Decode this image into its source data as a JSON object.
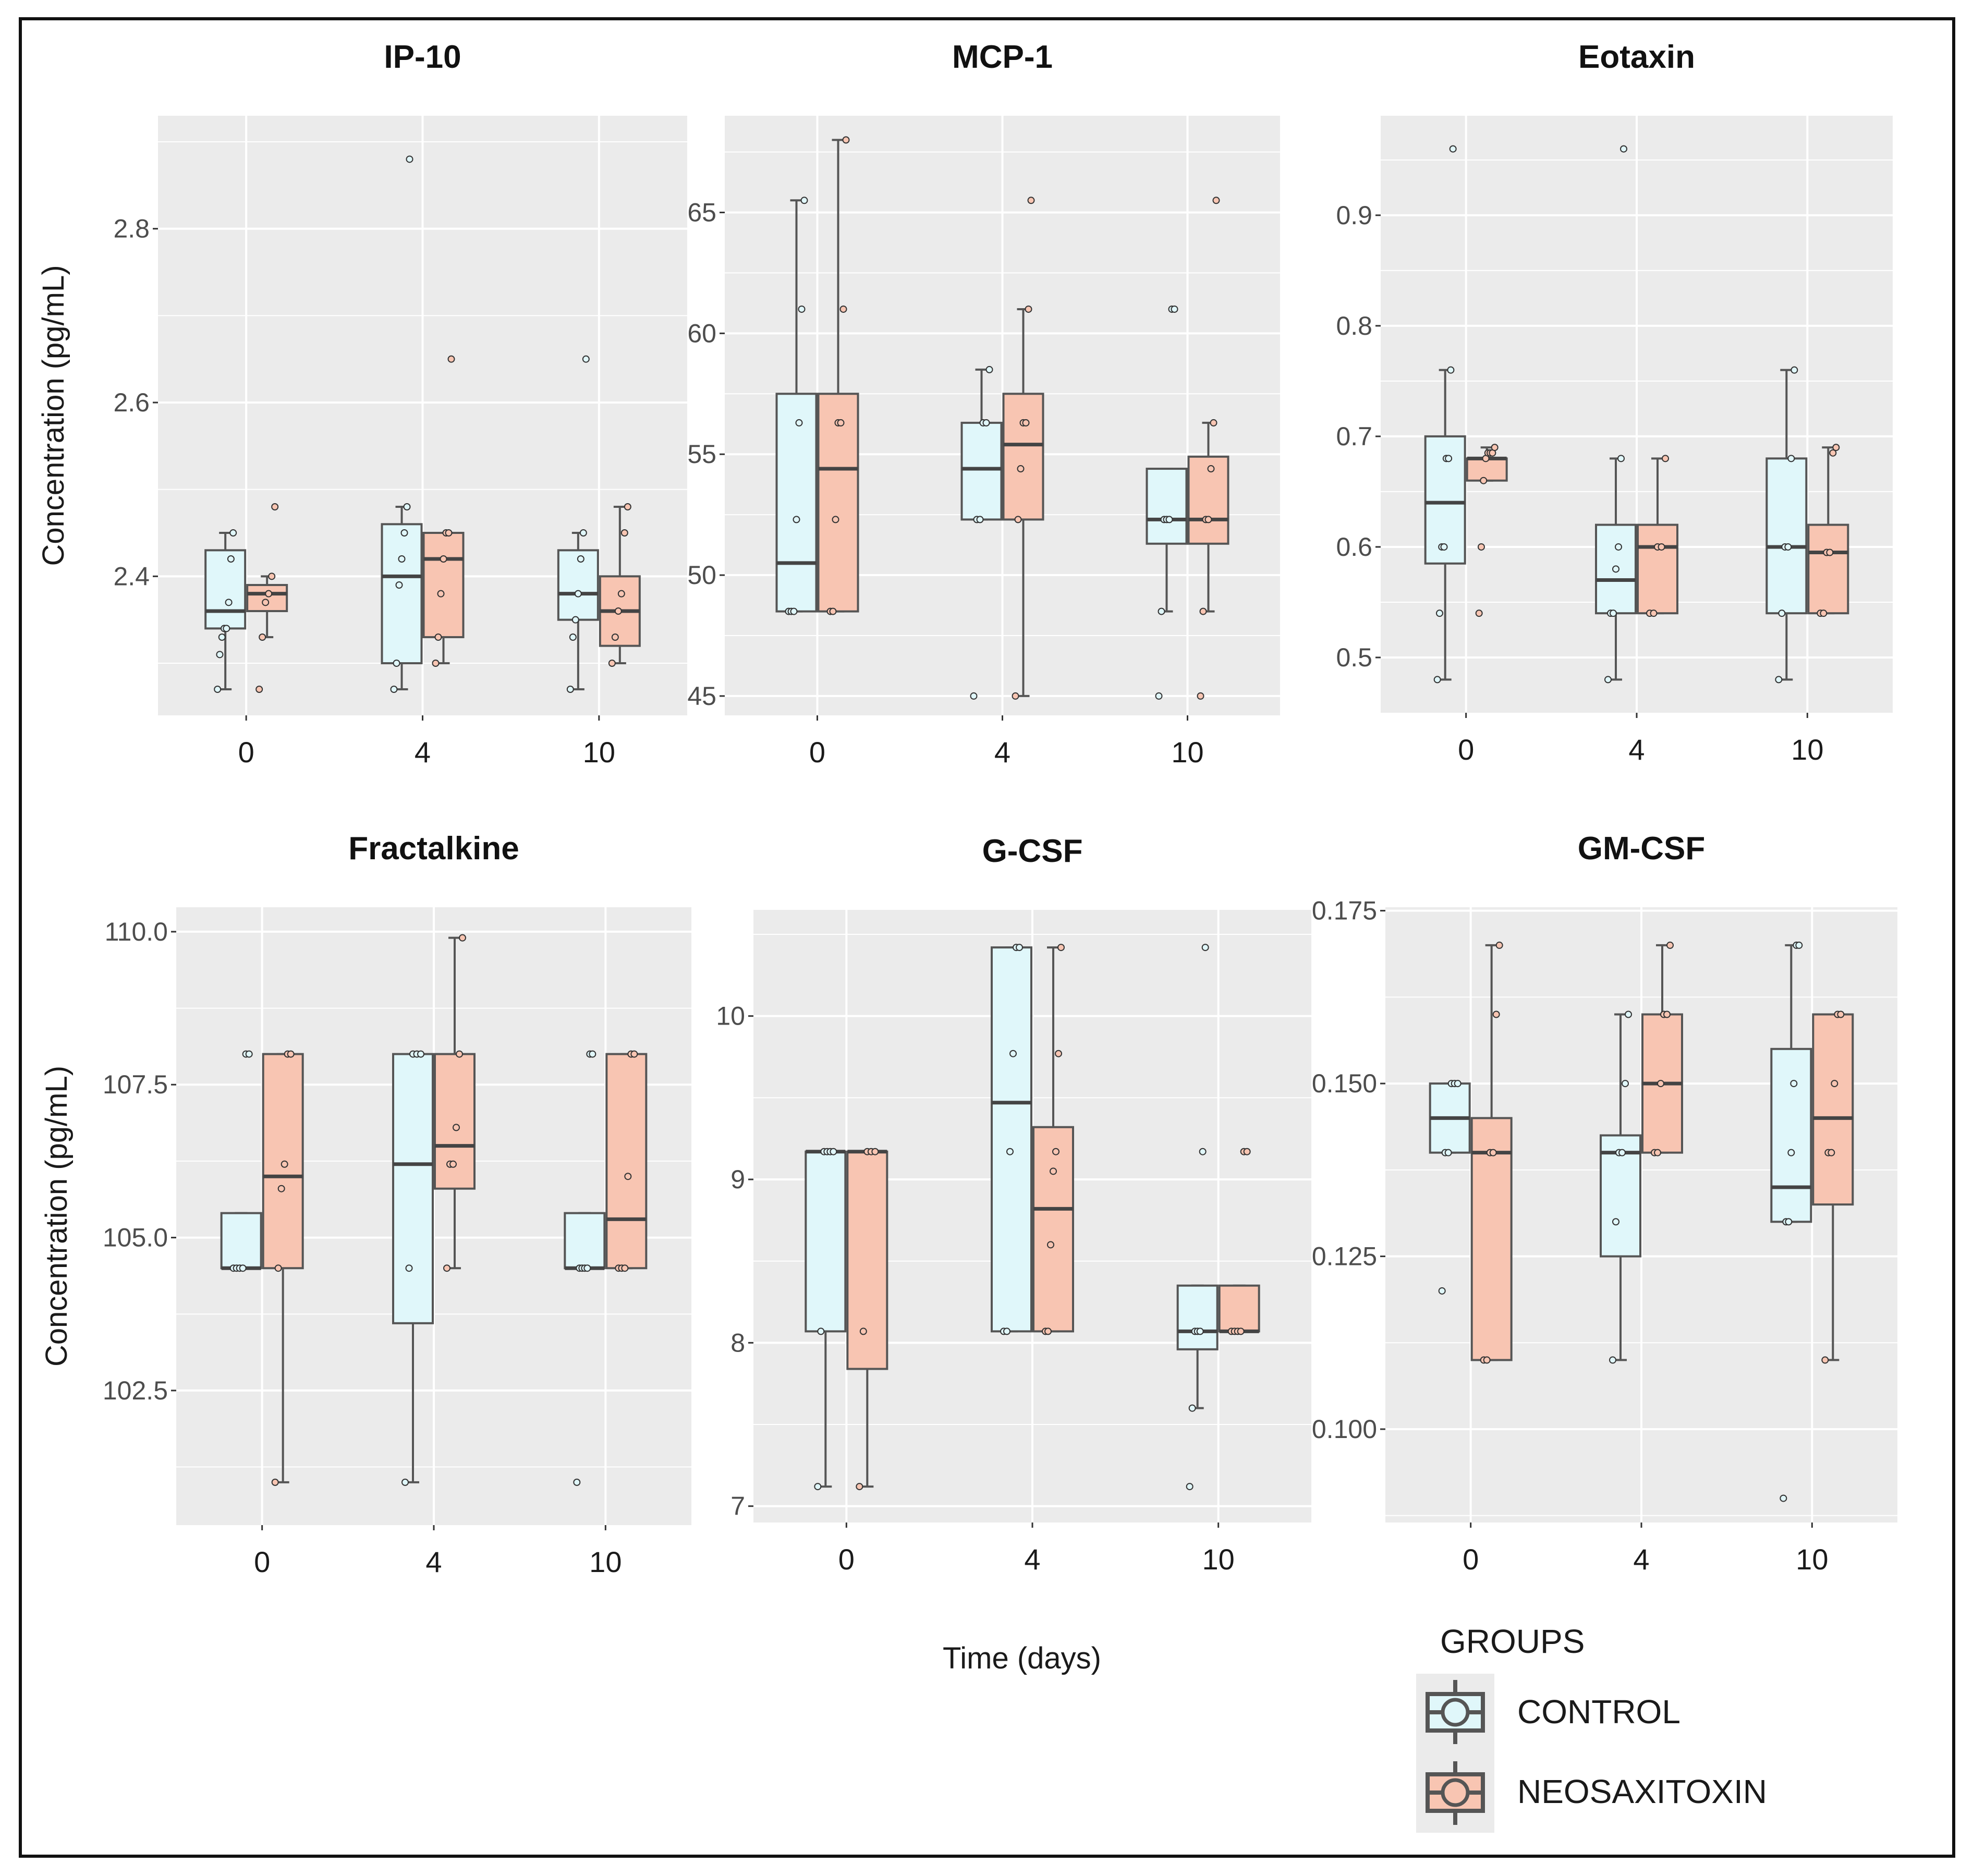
{
  "chart_data": [
    {
      "type": "box",
      "title": "IP-10",
      "ylabel": "Concentration (pg/mL)",
      "ylim": [
        2.24,
        2.93
      ],
      "yticks": [
        "2.4",
        "2.6",
        "2.8"
      ],
      "categories": [
        "0",
        "4",
        "10"
      ],
      "series": [
        {
          "name": "CONTROL",
          "boxes": [
            {
              "min": 2.27,
              "q1": 2.34,
              "median": 2.36,
              "q3": 2.43,
              "max": 2.45,
              "points": [
                2.27,
                2.31,
                2.33,
                2.34,
                2.34,
                2.37,
                2.42,
                2.45
              ]
            },
            {
              "min": 2.27,
              "q1": 2.3,
              "median": 2.4,
              "q3": 2.46,
              "max": 2.48,
              "points": [
                2.27,
                2.3,
                2.39,
                2.42,
                2.45,
                2.48,
                2.88
              ],
              "outliers": [
                2.88
              ]
            },
            {
              "min": 2.27,
              "q1": 2.35,
              "median": 2.38,
              "q3": 2.43,
              "max": 2.45,
              "points": [
                2.27,
                2.33,
                2.35,
                2.38,
                2.42,
                2.45,
                2.65
              ],
              "outliers": [
                2.65
              ]
            }
          ]
        },
        {
          "name": "NEOSAXITOXIN",
          "boxes": [
            {
              "min": 2.33,
              "q1": 2.36,
              "median": 2.38,
              "q3": 2.39,
              "max": 2.4,
              "points": [
                2.27,
                2.33,
                2.37,
                2.38,
                2.4,
                2.48
              ],
              "outliers": [
                2.27,
                2.48
              ]
            },
            {
              "min": 2.3,
              "q1": 2.33,
              "median": 2.42,
              "q3": 2.45,
              "max": 2.45,
              "points": [
                2.3,
                2.33,
                2.38,
                2.42,
                2.45,
                2.45,
                2.65
              ],
              "outliers": [
                2.65
              ]
            },
            {
              "min": 2.3,
              "q1": 2.32,
              "median": 2.36,
              "q3": 2.4,
              "max": 2.48,
              "points": [
                2.3,
                2.33,
                2.36,
                2.38,
                2.45,
                2.48
              ]
            }
          ]
        }
      ]
    },
    {
      "type": "box",
      "title": "MCP-1",
      "ylabel": "",
      "ylim": [
        44.2,
        69.0
      ],
      "yticks": [
        "45",
        "50",
        "55",
        "60",
        "65"
      ],
      "categories": [
        "0",
        "4",
        "10"
      ],
      "series": [
        {
          "name": "CONTROL",
          "boxes": [
            {
              "min": 48.5,
              "q1": 48.5,
              "median": 50.5,
              "q3": 57.5,
              "max": 65.5,
              "points": [
                48.5,
                48.5,
                48.5,
                52.3,
                56.3,
                61.0,
                65.5
              ]
            },
            {
              "min": 52.3,
              "q1": 52.3,
              "median": 54.4,
              "q3": 56.3,
              "max": 58.5,
              "points": [
                45.0,
                52.3,
                52.3,
                56.3,
                56.3,
                58.5
              ],
              "outliers": [
                45.0
              ]
            },
            {
              "min": 48.5,
              "q1": 51.3,
              "median": 52.3,
              "q3": 54.4,
              "max": 54.4,
              "points": [
                45.0,
                48.5,
                52.3,
                52.3,
                52.3,
                61.0,
                61.0
              ],
              "outliers": [
                45.0,
                61.0
              ]
            }
          ]
        },
        {
          "name": "NEOSAXITOXIN",
          "boxes": [
            {
              "min": 48.5,
              "q1": 48.5,
              "median": 54.4,
              "q3": 57.5,
              "max": 68.0,
              "points": [
                48.5,
                48.5,
                52.3,
                56.3,
                56.3,
                61.0,
                68.0
              ]
            },
            {
              "min": 45.0,
              "q1": 52.3,
              "median": 55.4,
              "q3": 57.5,
              "max": 61.0,
              "points": [
                45.0,
                52.3,
                54.4,
                56.3,
                56.3,
                61.0,
                65.5
              ]
            },
            {
              "min": 48.5,
              "q1": 51.3,
              "median": 52.3,
              "q3": 54.9,
              "max": 56.3,
              "points": [
                45.0,
                48.5,
                52.3,
                52.3,
                54.4,
                56.3,
                65.5
              ],
              "outliers": [
                45.0,
                65.5
              ]
            }
          ]
        }
      ]
    },
    {
      "type": "box",
      "title": "Eotaxin",
      "ylabel": "",
      "ylim": [
        0.45,
        0.99
      ],
      "yticks": [
        "0.5",
        "0.6",
        "0.7",
        "0.8",
        "0.9"
      ],
      "categories": [
        "0",
        "4",
        "10"
      ],
      "series": [
        {
          "name": "CONTROL",
          "boxes": [
            {
              "min": 0.48,
              "q1": 0.585,
              "median": 0.64,
              "q3": 0.7,
              "max": 0.76,
              "points": [
                0.48,
                0.54,
                0.6,
                0.6,
                0.68,
                0.68,
                0.76,
                0.96
              ],
              "outliers": [
                0.96
              ]
            },
            {
              "min": 0.48,
              "q1": 0.54,
              "median": 0.57,
              "q3": 0.62,
              "max": 0.68,
              "points": [
                0.48,
                0.54,
                0.54,
                0.58,
                0.6,
                0.68,
                0.96
              ],
              "outliers": [
                0.96
              ]
            },
            {
              "min": 0.48,
              "q1": 0.54,
              "median": 0.6,
              "q3": 0.68,
              "max": 0.76,
              "points": [
                0.48,
                0.54,
                0.6,
                0.6,
                0.68,
                0.76
              ]
            }
          ]
        },
        {
          "name": "NEOSAXITOXIN",
          "boxes": [
            {
              "min": 0.66,
              "q1": 0.66,
              "median": 0.68,
              "q3": 0.68,
              "max": 0.69,
              "points": [
                0.54,
                0.6,
                0.66,
                0.68,
                0.685,
                0.685,
                0.685,
                0.69
              ],
              "outliers": [
                0.54,
                0.6
              ]
            },
            {
              "min": 0.54,
              "q1": 0.54,
              "median": 0.6,
              "q3": 0.62,
              "max": 0.68,
              "points": [
                0.54,
                0.54,
                0.6,
                0.6,
                0.68
              ]
            },
            {
              "min": 0.54,
              "q1": 0.54,
              "median": 0.595,
              "q3": 0.62,
              "max": 0.69,
              "points": [
                0.54,
                0.54,
                0.595,
                0.595,
                0.685,
                0.69
              ]
            }
          ]
        }
      ]
    },
    {
      "type": "box",
      "title": "Fractalkine",
      "ylabel": "Concentration (pg/mL)",
      "ylim": [
        100.3,
        110.4
      ],
      "yticks": [
        "102.5",
        "105.0",
        "107.5",
        "110.0"
      ],
      "categories": [
        "0",
        "4",
        "10"
      ],
      "series": [
        {
          "name": "CONTROL",
          "boxes": [
            {
              "min": 104.5,
              "q1": 104.5,
              "median": 104.5,
              "q3": 105.4,
              "max": 105.4,
              "points": [
                104.5,
                104.5,
                104.5,
                104.5,
                108.0,
                108.0
              ],
              "outliers": [
                108.0
              ]
            },
            {
              "min": 101.0,
              "q1": 103.6,
              "median": 106.2,
              "q3": 108.0,
              "max": 108.0,
              "points": [
                101.0,
                104.5,
                108.0,
                108.0,
                108.0
              ]
            },
            {
              "min": 104.5,
              "q1": 104.5,
              "median": 104.5,
              "q3": 105.4,
              "max": 105.4,
              "points": [
                101.0,
                104.5,
                104.5,
                104.5,
                104.5,
                108.0,
                108.0
              ],
              "outliers": [
                101.0,
                108.0
              ]
            }
          ]
        },
        {
          "name": "NEOSAXITOXIN",
          "boxes": [
            {
              "min": 101.0,
              "q1": 104.5,
              "median": 106.0,
              "q3": 108.0,
              "max": 108.0,
              "points": [
                101.0,
                104.5,
                105.8,
                106.2,
                108.0,
                108.0
              ]
            },
            {
              "min": 104.5,
              "q1": 105.8,
              "median": 106.5,
              "q3": 108.0,
              "max": 109.9,
              "points": [
                104.5,
                106.2,
                106.2,
                106.8,
                108.0,
                109.9
              ]
            },
            {
              "min": 104.5,
              "q1": 104.5,
              "median": 105.3,
              "q3": 108.0,
              "max": 108.0,
              "points": [
                104.5,
                104.5,
                104.5,
                106.0,
                108.0,
                108.0
              ]
            }
          ]
        }
      ]
    },
    {
      "type": "box",
      "title": "G-CSF",
      "ylabel": "",
      "ylim": [
        6.9,
        10.65
      ],
      "yticks": [
        "7",
        "8",
        "9",
        "10"
      ],
      "categories": [
        "0",
        "4",
        "10"
      ],
      "series": [
        {
          "name": "CONTROL",
          "boxes": [
            {
              "min": 7.12,
              "q1": 8.07,
              "median": 9.17,
              "q3": 9.17,
              "max": 9.17,
              "points": [
                7.12,
                8.07,
                9.17,
                9.17,
                9.17,
                9.17
              ]
            },
            {
              "min": 8.07,
              "q1": 8.07,
              "median": 9.47,
              "q3": 10.42,
              "max": 10.42,
              "points": [
                8.07,
                8.07,
                9.17,
                9.77,
                10.42,
                10.42
              ]
            },
            {
              "min": 7.6,
              "q1": 7.96,
              "median": 8.07,
              "q3": 8.35,
              "max": 8.35,
              "points": [
                7.12,
                7.6,
                8.07,
                8.07,
                8.07,
                9.17,
                10.42
              ],
              "outliers": [
                7.12,
                9.17,
                10.42
              ]
            }
          ]
        },
        {
          "name": "NEOSAXITOXIN",
          "boxes": [
            {
              "min": 7.12,
              "q1": 7.84,
              "median": 9.17,
              "q3": 9.17,
              "max": 9.17,
              "points": [
                7.12,
                8.07,
                9.17,
                9.17,
                9.17
              ]
            },
            {
              "min": 8.07,
              "q1": 8.07,
              "median": 8.82,
              "q3": 9.32,
              "max": 10.42,
              "points": [
                8.07,
                8.07,
                8.6,
                9.05,
                9.17,
                9.77,
                10.42
              ]
            },
            {
              "min": 8.07,
              "q1": 8.07,
              "median": 8.07,
              "q3": 8.35,
              "max": 8.35,
              "points": [
                8.07,
                8.07,
                8.07,
                8.07,
                9.17,
                9.17
              ],
              "outliers": [
                9.17
              ]
            }
          ]
        }
      ]
    },
    {
      "type": "box",
      "title": "GM-CSF",
      "ylabel": "",
      "ylim": [
        0.0865,
        0.1755
      ],
      "yticks": [
        "0.100",
        "0.125",
        "0.150",
        "0.175"
      ],
      "categories": [
        "0",
        "4",
        "10"
      ],
      "series": [
        {
          "name": "CONTROL",
          "boxes": [
            {
              "min": 0.14,
              "q1": 0.14,
              "median": 0.145,
              "q3": 0.15,
              "max": 0.15,
              "points": [
                0.12,
                0.14,
                0.14,
                0.15,
                0.15,
                0.15
              ],
              "outliers": [
                0.12
              ]
            },
            {
              "min": 0.11,
              "q1": 0.125,
              "median": 0.14,
              "q3": 0.1425,
              "max": 0.16,
              "points": [
                0.11,
                0.13,
                0.14,
                0.14,
                0.15,
                0.16
              ]
            },
            {
              "min": 0.13,
              "q1": 0.13,
              "median": 0.135,
              "q3": 0.155,
              "max": 0.17,
              "points": [
                0.09,
                0.13,
                0.13,
                0.14,
                0.15,
                0.17,
                0.17
              ],
              "outliers": [
                0.09
              ]
            }
          ]
        },
        {
          "name": "NEOSAXITOXIN",
          "boxes": [
            {
              "min": 0.11,
              "q1": 0.11,
              "median": 0.14,
              "q3": 0.145,
              "max": 0.17,
              "points": [
                0.11,
                0.11,
                0.14,
                0.14,
                0.16,
                0.17
              ]
            },
            {
              "min": 0.14,
              "q1": 0.14,
              "median": 0.15,
              "q3": 0.16,
              "max": 0.17,
              "points": [
                0.14,
                0.14,
                0.15,
                0.16,
                0.16,
                0.17
              ]
            },
            {
              "min": 0.11,
              "q1": 0.1325,
              "median": 0.145,
              "q3": 0.16,
              "max": 0.16,
              "points": [
                0.11,
                0.14,
                0.14,
                0.15,
                0.16,
                0.16
              ]
            }
          ]
        }
      ]
    }
  ],
  "x_axis_title": "Time  (days)",
  "legend": {
    "title": "GROUPS",
    "items": [
      {
        "label": "CONTROL",
        "fill": "#e0f7fa"
      },
      {
        "label": "NEOSAXITOXIN",
        "fill": "#f8c5b2"
      }
    ]
  },
  "colors": {
    "panel_background": "#ebebeb",
    "grid": "#ffffff",
    "box_outline": "#555555",
    "control_fill": "#e0f7fa",
    "neosaxitoxin_fill": "#f8c5b2"
  }
}
